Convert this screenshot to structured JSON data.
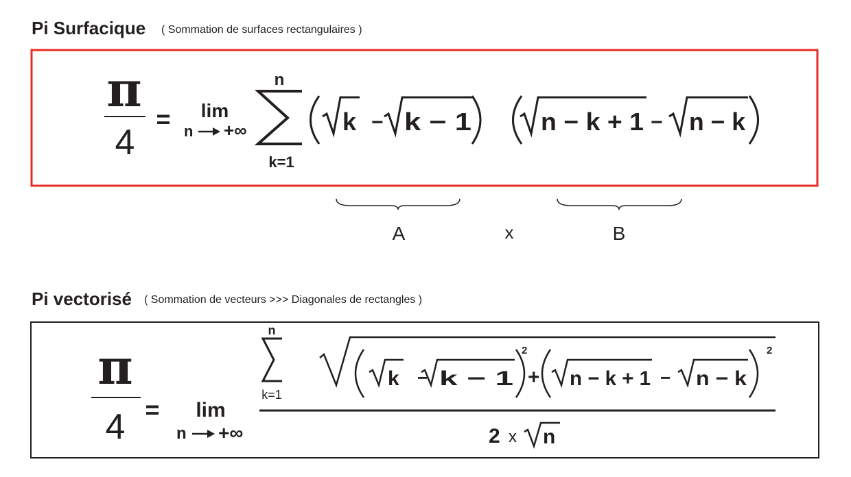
{
  "section1": {
    "title": "Pi Surfacique",
    "subtitle": "( Sommation de surfaces rectangulaires )",
    "frame_color": "#e82b25",
    "formula": {
      "pi": "π",
      "denominator": "4",
      "equals": "=",
      "lim": "lim",
      "lim_var": "n",
      "lim_to": "+∞",
      "sum_upper": "n",
      "sum_lower": "k=1",
      "term_a1": "k",
      "minus": "−",
      "term_a2": "k − 1",
      "term_b1": "n − k  + 1",
      "term_b2": "n − k"
    },
    "labels": {
      "a": "A",
      "times": "x",
      "b": "B"
    }
  },
  "section2": {
    "title": "Pi vectorisé",
    "subtitle": "( Sommation de vecteurs >>> Diagonales de rectangles )",
    "frame_color": "#231f20",
    "formula": {
      "pi": "π",
      "denominator": "4",
      "equals": "=",
      "lim": "lim",
      "lim_var": "n",
      "lim_to": "+∞",
      "sum_upper": "n",
      "sum_lower": "k=1",
      "term_a1": "k",
      "minus": "−",
      "term_a2": "k − 1",
      "plus": "+",
      "square": "2",
      "term_b1": "n − k  + 1",
      "term_b2": "n − k",
      "denom_two": "2",
      "denom_x": "x",
      "denom_n": "n"
    }
  }
}
